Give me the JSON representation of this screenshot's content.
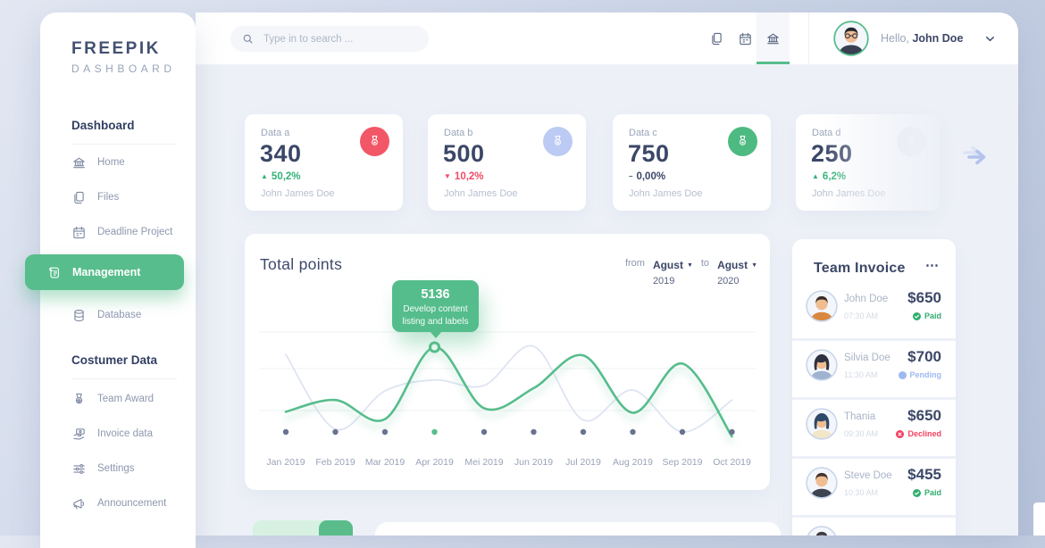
{
  "brand": {
    "name": "FREEPIK",
    "sub": "DASHBOARD"
  },
  "sidebar": {
    "sections": [
      {
        "title": "Dashboard",
        "items": [
          {
            "icon": "bank-icon",
            "label": "Home",
            "active": false
          },
          {
            "icon": "files-icon",
            "label": "Files",
            "active": false
          },
          {
            "icon": "calendar-icon",
            "label": "Deadline Project",
            "active": false
          },
          {
            "icon": "scroll-icon",
            "label": "Management",
            "active": true
          },
          {
            "icon": "database-icon",
            "label": "Database",
            "active": false
          }
        ]
      },
      {
        "title": "Costumer Data",
        "items": [
          {
            "icon": "award-icon",
            "label": "Team Award",
            "active": false
          },
          {
            "icon": "invoice-icon",
            "label": "Invoice data",
            "active": false
          },
          {
            "icon": "sliders-icon",
            "label": "Settings",
            "active": false
          },
          {
            "icon": "megaphone-icon",
            "label": "Announcement",
            "active": false
          }
        ]
      }
    ]
  },
  "header": {
    "search_placeholder": "Type in to search ...",
    "icons": [
      "files-icon",
      "calendar-icon",
      "bank-icon"
    ],
    "active_icon": "bank-icon",
    "greeting": "Hello,",
    "user": "John Doe",
    "user_avatar": {
      "hair": "#23262f",
      "shirt": "#3a3f52",
      "glasses": true,
      "ring": "#57bd8c"
    }
  },
  "stats": [
    {
      "label": "Data a",
      "value": "340",
      "delta": "50,2%",
      "trend": "up",
      "owner": "John James Doe",
      "icon_bg": "#f25767",
      "icon_color": "#ffffff",
      "faded": false
    },
    {
      "label": "Data b",
      "value": "500",
      "delta": "10,2%",
      "trend": "down",
      "owner": "John James Doe",
      "icon_bg": "#bccbf4",
      "icon_color": "#ffffff",
      "faded": false
    },
    {
      "label": "Data c",
      "value": "750",
      "delta": "0,00%",
      "trend": "flat",
      "owner": "John James Doe",
      "icon_bg": "#4dba82",
      "icon_color": "#ffffff",
      "faded": false
    },
    {
      "label": "Data d",
      "value": "250",
      "delta": "6,2%",
      "trend": "up",
      "owner": "John James Doe",
      "icon_bg": "#e6e9f0",
      "icon_color": "#c9cfdb",
      "faded": true
    }
  ],
  "chart": {
    "title": "Total points",
    "range": {
      "from_label": "from",
      "from_month": "Agust",
      "from_year": "2019",
      "to_label": "to",
      "to_month": "Agust",
      "to_year": "2020"
    },
    "tooltip": {
      "value": "5136",
      "line1": "Develop content",
      "line2": "listing and labels"
    }
  },
  "chart_data": {
    "type": "line",
    "x_categories": [
      "Jan 2019",
      "Feb 2019",
      "Mar 2019",
      "Apr 2019",
      "Mei 2019",
      "Jun 2019",
      "Jul 2019",
      "Aug 2019",
      "Sep 2019",
      "Oct 2019"
    ],
    "series": [
      {
        "name": "Total points",
        "color": "#57bd8c",
        "values": [
          28,
          41,
          20,
          99,
          32,
          54,
          90,
          27,
          81,
          1
        ]
      },
      {
        "name": "Previous period",
        "color": "#dfe4f3",
        "values": [
          91,
          9,
          51,
          63,
          57,
          100,
          19,
          52,
          6,
          41
        ]
      }
    ],
    "ylim": [
      0,
      100
    ],
    "y_axis": "unlabeled, relative scale estimated from pixels",
    "grid": true,
    "legend": false,
    "highlight": {
      "category": "Apr 2019",
      "value": 5136,
      "label": "Develop content listing and labels"
    }
  },
  "invoice": {
    "title": "Team Invoice",
    "menu": "⋯",
    "rows": [
      {
        "name": "John Doe",
        "time": "07:30 AM",
        "amount": "$650",
        "status": "Paid",
        "status_type": "paid",
        "avatar": {
          "hair": "#3a2e28",
          "shirt": "#d98840",
          "style": "short",
          "ring": "#c9d6ea"
        }
      },
      {
        "name": "Silvia Doe",
        "time": "11:30 AM",
        "amount": "$700",
        "status": "Pending",
        "status_type": "pending",
        "avatar": {
          "hair": "#2e3140",
          "shirt": "#9fb3cf",
          "style": "long",
          "ring": "#c9d6ea"
        }
      },
      {
        "name": "Thania",
        "time": "09:30 AM",
        "amount": "$650",
        "status": "Declined",
        "status_type": "declined",
        "avatar": {
          "hair": "#2e4a68",
          "shirt": "#f1e6c8",
          "style": "long",
          "ring": "#c9d6ea"
        }
      },
      {
        "name": "Steve Doe",
        "time": "10:30 AM",
        "amount": "$455",
        "status": "Paid",
        "status_type": "paid",
        "avatar": {
          "hair": "#43322a",
          "shirt": "#3e4452",
          "style": "short",
          "ring": "#c9d6ea"
        }
      },
      {
        "partial": true,
        "avatar": {
          "hair": "#3a3a44",
          "shirt": "#8899bb",
          "style": "short",
          "ring": "#c9d6ea"
        }
      }
    ]
  }
}
